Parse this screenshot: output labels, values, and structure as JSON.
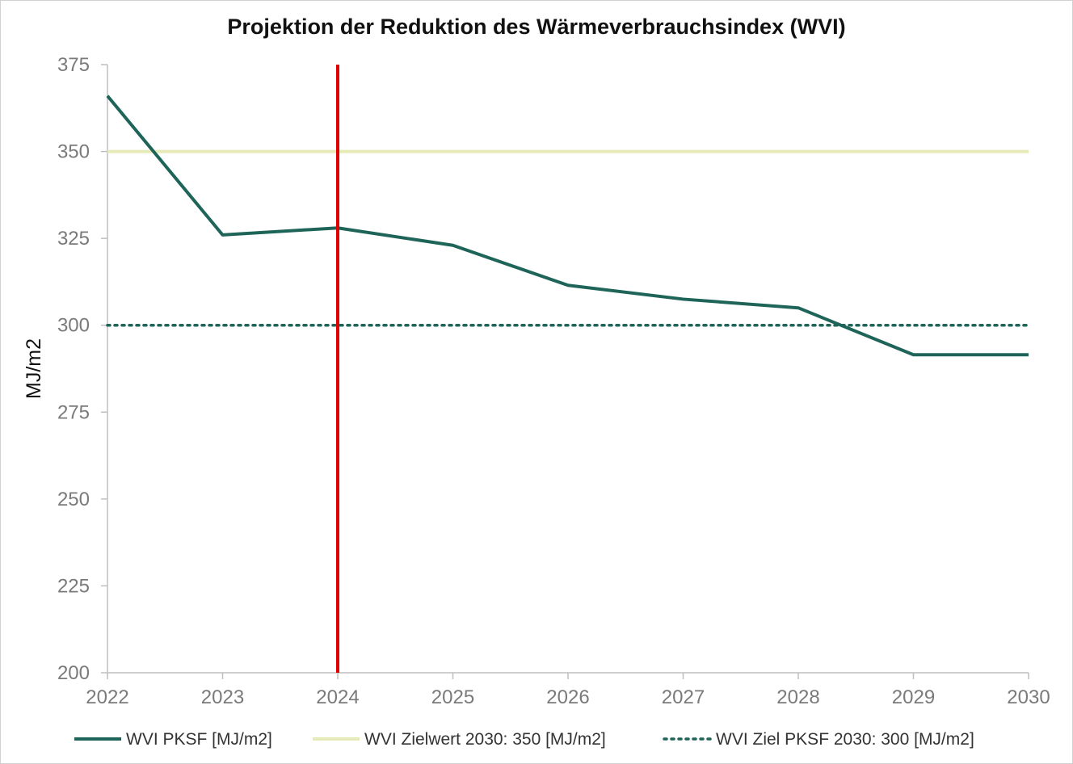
{
  "chart_data": {
    "type": "line",
    "title": "Projektion der Reduktion des Wärmeverbrauchsindex (WVI)",
    "xlabel": "",
    "ylabel": "MJ/m2",
    "ylim": [
      200,
      375
    ],
    "y_ticks": [
      200,
      225,
      250,
      275,
      300,
      325,
      350,
      375
    ],
    "x": [
      2022,
      2023,
      2024,
      2025,
      2026,
      2027,
      2028,
      2029,
      2030
    ],
    "series": [
      {
        "name": "WVI PKSF [MJ/m2]",
        "values": [
          366,
          326,
          328,
          323,
          311.5,
          307.5,
          305,
          291.5,
          291.5
        ],
        "color": "#1e6458",
        "style": "solid"
      },
      {
        "name": "WVI Zielwert 2030: 350 [MJ/m2]",
        "values": [
          350,
          350,
          350,
          350,
          350,
          350,
          350,
          350,
          350
        ],
        "color": "#e6e9b8",
        "style": "solid"
      },
      {
        "name": "WVI Ziel PKSF 2030: 300 [MJ/m2]",
        "values": [
          300,
          300,
          300,
          300,
          300,
          300,
          300,
          300,
          300
        ],
        "color": "#1e6458",
        "style": "dotted"
      }
    ],
    "marker_line": {
      "x": 2024,
      "color": "#e00000"
    },
    "grid": false,
    "legend_position": "bottom"
  }
}
